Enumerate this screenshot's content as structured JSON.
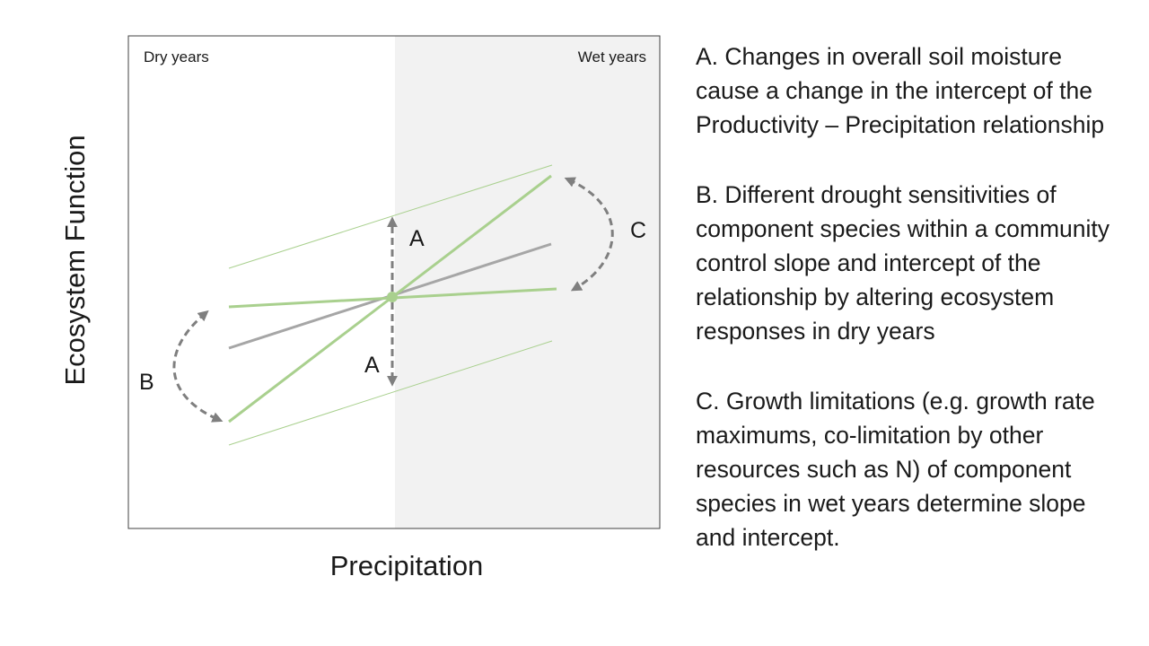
{
  "diagram": {
    "y_axis_label": "Ecosystem Function",
    "x_axis_label": "Precipitation",
    "panel_labels": {
      "dry": "Dry years",
      "wet": "Wet years"
    },
    "markers": {
      "a_upper": "A",
      "a_lower": "A",
      "b": "B",
      "c": "C"
    },
    "colors": {
      "green_line": "#a9d08e",
      "grey_line": "#a6a6a6",
      "dashed_arrow": "#7f7f7f",
      "wet_background": "#f2f2f2",
      "frame": "#404040",
      "text": "#1a1a1a"
    }
  },
  "explanations": {
    "a": "A. Changes in overall soil moisture cause a change in the intercept of the Productivity – Precipitation relationship",
    "b": "B. Different drought sensitivities of component species within a community control slope and intercept of the relationship by altering ecosystem responses in dry years",
    "c": "C. Growth limitations (e.g. growth rate maximums, co-limitation by other resources such as N) of component species in wet years determine slope and intercept."
  }
}
